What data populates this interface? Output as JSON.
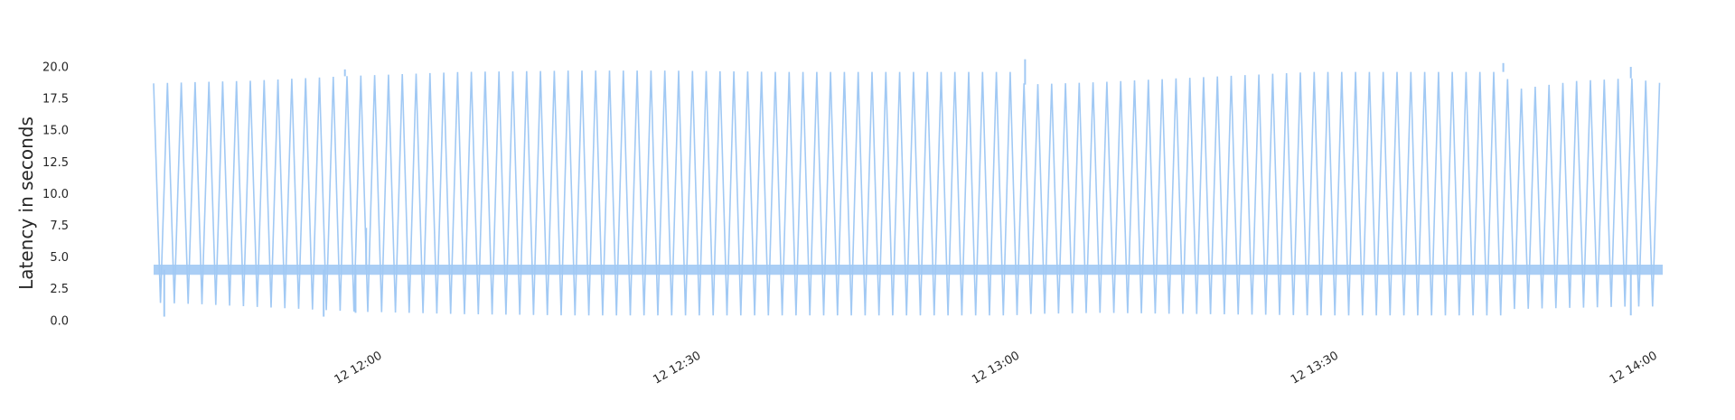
{
  "chart_data": {
    "type": "line",
    "title": "",
    "xlabel": "",
    "ylabel": "Latency in seconds",
    "x_range": [
      "11:41",
      "14:03"
    ],
    "ylim": [
      -0.8,
      21.0
    ],
    "y_ticks": [
      0.0,
      2.5,
      5.0,
      7.5,
      10.0,
      12.5,
      15.0,
      17.5,
      20.0
    ],
    "y_tick_labels": [
      "0.0",
      "2.5",
      "5.0",
      "7.5",
      "10.0",
      "12.5",
      "15.0",
      "17.5",
      "20.0"
    ],
    "x_ticks": [
      "12:00",
      "12:30",
      "13:00",
      "13:30",
      "14:00"
    ],
    "x_tick_labels": [
      "12 12:00",
      "12 12:30",
      "12 13:00",
      "12 13:30",
      "12 14:00"
    ],
    "grid": false,
    "legend": "none",
    "series_color": "#a1c9f4",
    "baseline_band": [
      3.6,
      4.4
    ],
    "envelope": {
      "x": [
        "11:41",
        "11:45",
        "11:50",
        "11:55",
        "12:00",
        "12:10",
        "12:20",
        "12:30",
        "12:40",
        "12:50",
        "13:02",
        "13:03",
        "13:10",
        "13:20",
        "13:30",
        "13:40",
        "13:48",
        "13:49",
        "13:55",
        "14:00",
        "14:03"
      ],
      "upper": [
        18.7,
        18.8,
        18.9,
        19.1,
        19.3,
        19.6,
        19.7,
        19.7,
        19.6,
        19.6,
        19.6,
        18.6,
        18.8,
        19.2,
        19.6,
        19.6,
        19.6,
        18.2,
        18.9,
        19.1,
        18.7
      ],
      "lower": [
        1.4,
        1.3,
        1.1,
        0.9,
        0.7,
        0.5,
        0.4,
        0.4,
        0.4,
        0.4,
        0.4,
        0.5,
        0.6,
        0.5,
        0.4,
        0.4,
        0.4,
        0.9,
        1.0,
        1.1,
        1.1
      ]
    },
    "spikes": [
      {
        "x": "11:42",
        "y": 0.3
      },
      {
        "x": "11:59",
        "y": 19.8
      },
      {
        "x": "12:01",
        "y": 7.3
      },
      {
        "x": "12:00",
        "y": 0.6
      },
      {
        "x": "13:03",
        "y": 20.6
      },
      {
        "x": "13:48",
        "y": 20.3
      },
      {
        "x": "14:00",
        "y": 20.0
      },
      {
        "x": "14:00",
        "y": 0.4
      },
      {
        "x": "11:57",
        "y": 0.3
      }
    ]
  }
}
